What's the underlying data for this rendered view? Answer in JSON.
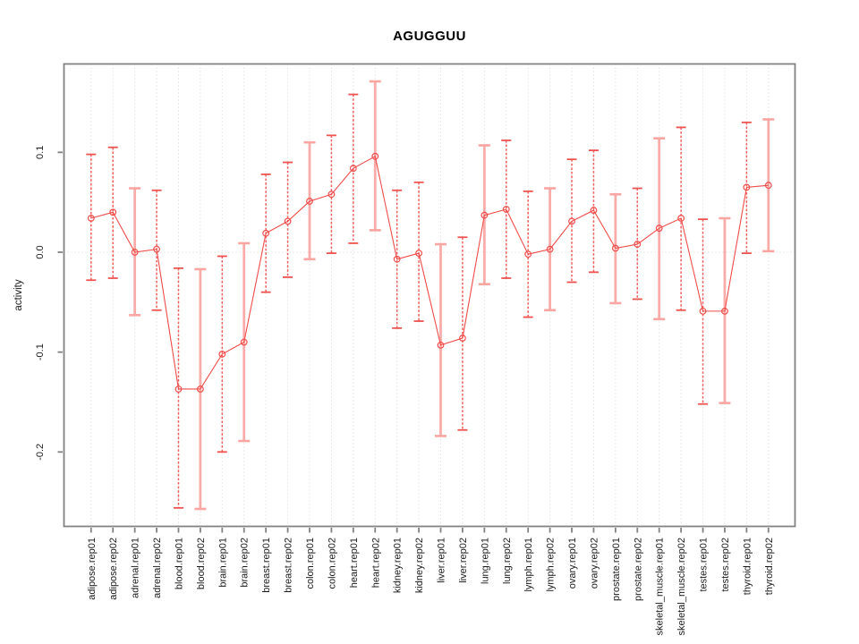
{
  "chart_data": {
    "type": "line",
    "title": "AGUGGUU",
    "xlabel": "",
    "ylabel": "activity",
    "ylim": [
      -0.2745,
      0.1885
    ],
    "yticks": [
      0.1,
      0.0,
      -0.1,
      -0.2
    ],
    "ytick_labels": [
      "0.1",
      "0.0",
      "-0.1",
      "-0.2"
    ],
    "grid": "vertical-dotted",
    "zero_line_dotted": true,
    "legend": "none",
    "marker": "open-circle",
    "categories": [
      "adipose.rep01",
      "adipose.rep02",
      "adrenal.rep01",
      "adrenal.rep02",
      "blood.rep01",
      "blood.rep02",
      "brain.rep01",
      "brain.rep02",
      "breast.rep01",
      "breast.rep02",
      "colon.rep01",
      "colon.rep02",
      "heart.rep01",
      "heart.rep02",
      "kidney.rep01",
      "kidney.rep02",
      "liver.rep01",
      "liver.rep02",
      "lung.rep01",
      "lung.rep02",
      "lymph.rep01",
      "lymph.rep02",
      "ovary.rep01",
      "ovary.rep02",
      "prostate.rep01",
      "prostate.rep02",
      "skeletal_muscle.rep01",
      "skeletal_muscle.rep02",
      "testes.rep01",
      "testes.rep02",
      "thyroid.rep01",
      "thyroid.rep02"
    ],
    "series": [
      {
        "name": "activity",
        "values": [
          0.034,
          0.04,
          0.0,
          0.003,
          -0.137,
          -0.137,
          -0.102,
          -0.09,
          0.019,
          0.031,
          0.051,
          0.058,
          0.084,
          0.096,
          -0.007,
          -0.001,
          -0.093,
          -0.086,
          0.037,
          0.043,
          -0.002,
          0.003,
          0.031,
          0.042,
          0.004,
          0.008,
          0.024,
          0.034,
          -0.059,
          -0.059,
          0.065,
          0.067
        ],
        "upper": [
          0.098,
          0.105,
          0.064,
          0.062,
          -0.016,
          -0.017,
          -0.004,
          0.009,
          0.078,
          0.09,
          0.11,
          0.117,
          0.158,
          0.171,
          0.062,
          0.07,
          0.008,
          0.015,
          0.107,
          0.112,
          0.061,
          0.064,
          0.093,
          0.102,
          0.058,
          0.064,
          0.114,
          0.125,
          0.033,
          0.034,
          0.13,
          0.133
        ],
        "lower": [
          -0.028,
          -0.026,
          -0.063,
          -0.058,
          -0.256,
          -0.257,
          -0.2,
          -0.189,
          -0.04,
          -0.025,
          -0.007,
          -0.001,
          0.009,
          0.022,
          -0.076,
          -0.069,
          -0.184,
          -0.178,
          -0.032,
          -0.026,
          -0.065,
          -0.058,
          -0.03,
          -0.02,
          -0.051,
          -0.047,
          -0.067,
          -0.058,
          -0.152,
          -0.151,
          -0.001,
          0.001
        ]
      }
    ],
    "bar_styles": [
      "dark",
      "dark",
      "light",
      "dark",
      "dark",
      "light",
      "dark",
      "light",
      "dark",
      "dark",
      "light",
      "dark",
      "dark",
      "light",
      "dark",
      "dark",
      "light",
      "dark",
      "light",
      "dark",
      "dark",
      "light",
      "dark",
      "dark",
      "light",
      "dark",
      "light",
      "dark",
      "dark",
      "light",
      "dark",
      "light"
    ],
    "colors": {
      "point": "#ef4d4a",
      "bar_dark": "#ef5350",
      "bar_light": "#f9a5a2",
      "grid": "#d4d4d4",
      "axis": "#828282",
      "text": "#1a1a1a"
    }
  }
}
